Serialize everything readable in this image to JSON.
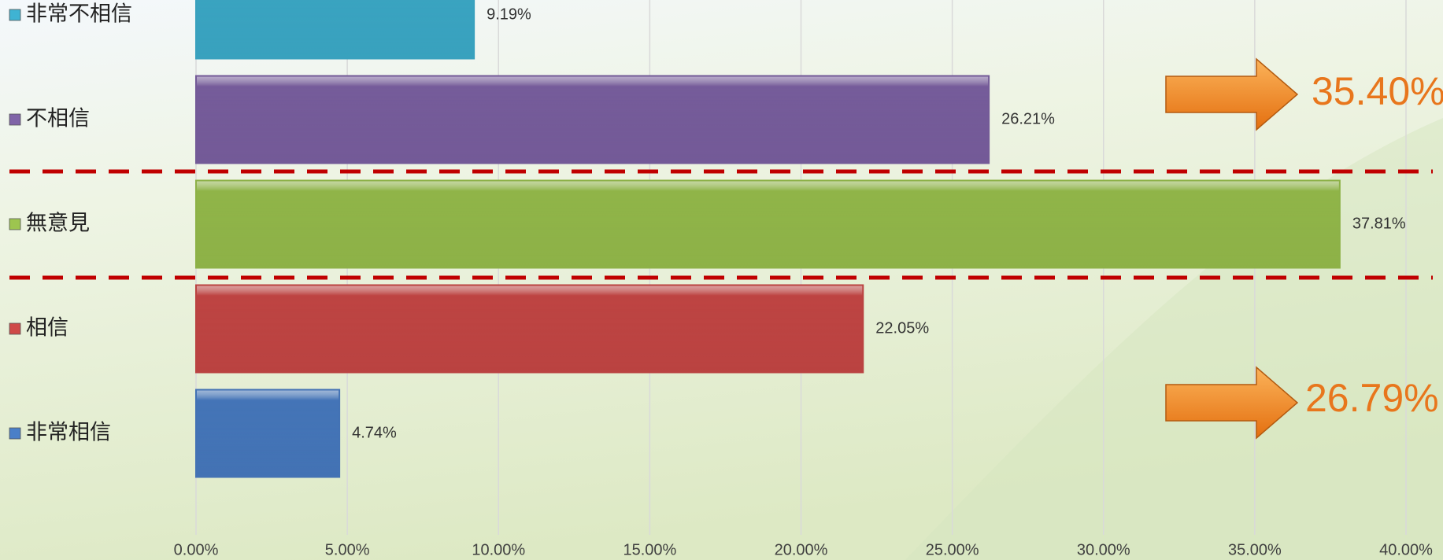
{
  "chart_data": {
    "type": "bar",
    "orientation": "horizontal",
    "categories": [
      "非常不相信",
      "不相信",
      "無意見",
      "相信",
      "非常相信"
    ],
    "values": [
      9.19,
      26.21,
      37.81,
      22.05,
      4.74
    ],
    "value_labels": [
      "9.19%",
      "26.21%",
      "37.81%",
      "22.05%",
      "4.74%"
    ],
    "colors": [
      "#3fb3d3",
      "#8064a8",
      "#9dc54f",
      "#cf4a48",
      "#4a7fc8"
    ],
    "xlim": [
      0,
      40
    ],
    "xticks": [
      {
        "value": 0,
        "label": "0.00%"
      },
      {
        "value": 5,
        "label": "5.00%"
      },
      {
        "value": 10,
        "label": "10.00%"
      },
      {
        "value": 15,
        "label": "15.00%"
      },
      {
        "value": 20,
        "label": "20.00%"
      },
      {
        "value": 25,
        "label": "25.00%"
      },
      {
        "value": 30,
        "label": "30.00%"
      },
      {
        "value": 35,
        "label": "35.00%"
      },
      {
        "value": 40,
        "label": "40.00%"
      }
    ],
    "grid": true,
    "annotations": [
      "35.40%",
      "26.79%"
    ]
  }
}
